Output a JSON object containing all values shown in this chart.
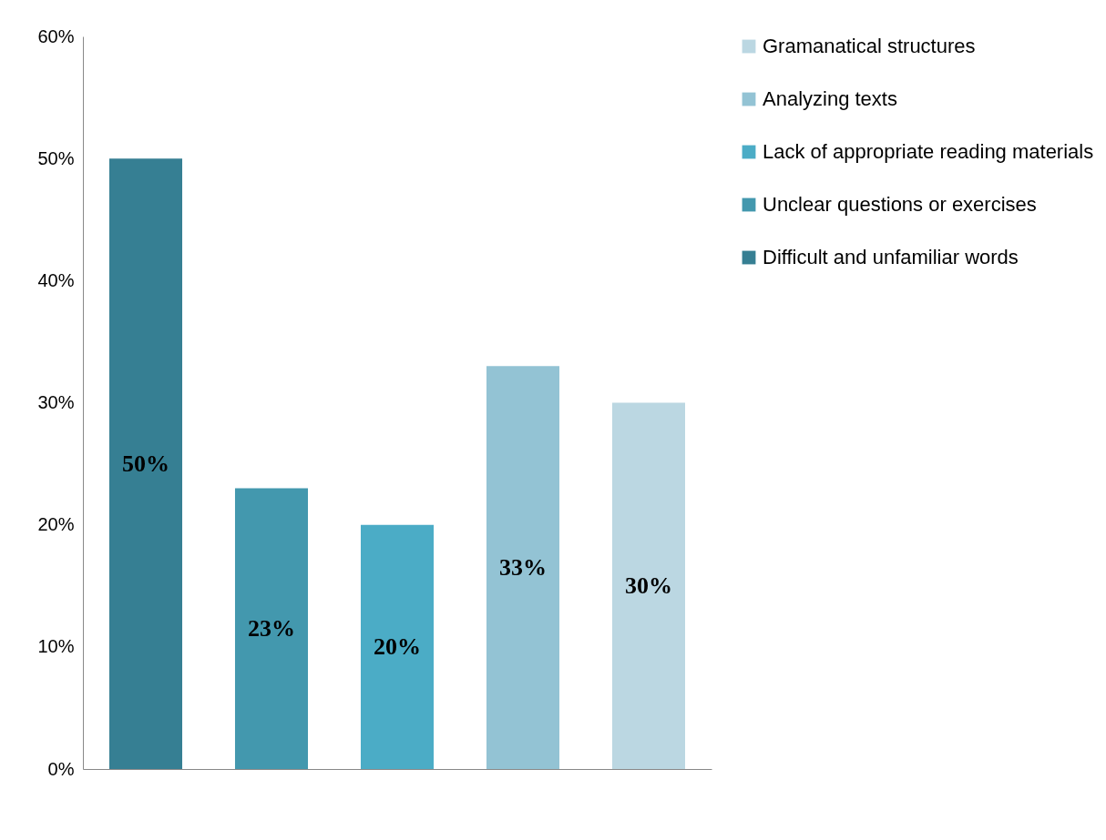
{
  "chart_data": {
    "type": "bar",
    "categories": [
      null,
      null,
      null,
      null,
      null
    ],
    "series": [
      {
        "name": "Difficult and unfamiliar words",
        "color": "#367f93",
        "values": [
          50,
          null,
          null,
          null,
          null
        ],
        "value_labels": [
          "50%",
          null,
          null,
          null,
          null
        ]
      },
      {
        "name": "Unclear questions or exercises",
        "color": "#4398ae",
        "values": [
          null,
          23,
          null,
          null,
          null
        ],
        "value_labels": [
          null,
          "23%",
          null,
          null,
          null
        ]
      },
      {
        "name": "Lack of appropriate reading materials",
        "color": "#4bacc6",
        "values": [
          null,
          null,
          20,
          null,
          null
        ],
        "value_labels": [
          null,
          null,
          "20%",
          null,
          null
        ]
      },
      {
        "name": "Analyzing texts",
        "color": "#93c3d4",
        "values": [
          null,
          null,
          null,
          33,
          null
        ],
        "value_labels": [
          null,
          null,
          null,
          "33%",
          null
        ]
      },
      {
        "name": "Gramanatical structures",
        "color": "#bbd7e2",
        "values": [
          null,
          null,
          null,
          null,
          30
        ],
        "value_labels": [
          null,
          null,
          null,
          null,
          "30%"
        ]
      }
    ],
    "ylim": [
      0,
      60
    ],
    "yticks": [
      {
        "value": 0,
        "label": "0%"
      },
      {
        "value": 10,
        "label": "10%"
      },
      {
        "value": 20,
        "label": "20%"
      },
      {
        "value": 30,
        "label": "30%"
      },
      {
        "value": 40,
        "label": "40%"
      },
      {
        "value": 50,
        "label": "50%"
      },
      {
        "value": 60,
        "label": "60%"
      }
    ],
    "grid": false,
    "legend": "right"
  }
}
